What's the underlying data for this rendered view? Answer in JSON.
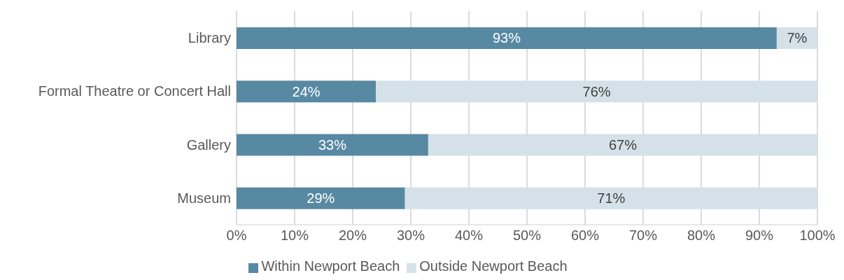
{
  "chart_data": {
    "type": "bar",
    "orientation": "horizontal",
    "stacked": true,
    "categories": [
      "Library",
      "Formal Theatre or Concert Hall",
      "Gallery",
      "Museum"
    ],
    "series": [
      {
        "name": "Within Newport Beach",
        "color": "#5889a3",
        "values": [
          93,
          24,
          33,
          29
        ],
        "value_labels": [
          "93%",
          "24%",
          "33%",
          "29%"
        ]
      },
      {
        "name": "Outside Newport Beach",
        "color": "#d5e1e8",
        "values": [
          7,
          76,
          67,
          71
        ],
        "value_labels": [
          "7%",
          "76%",
          "67%",
          "71%"
        ]
      }
    ],
    "xlim": [
      0,
      100
    ],
    "xticks": [
      {
        "value": 0,
        "label": "0%"
      },
      {
        "value": 10,
        "label": "10%"
      },
      {
        "value": 20,
        "label": "20%"
      },
      {
        "value": 30,
        "label": "30%"
      },
      {
        "value": 40,
        "label": "40%"
      },
      {
        "value": 50,
        "label": "50%"
      },
      {
        "value": 60,
        "label": "60%"
      },
      {
        "value": 70,
        "label": "70%"
      },
      {
        "value": 80,
        "label": "80%"
      },
      {
        "value": 90,
        "label": "90%"
      },
      {
        "value": 100,
        "label": "100%"
      }
    ],
    "grid": "x",
    "legend": "bottom"
  }
}
